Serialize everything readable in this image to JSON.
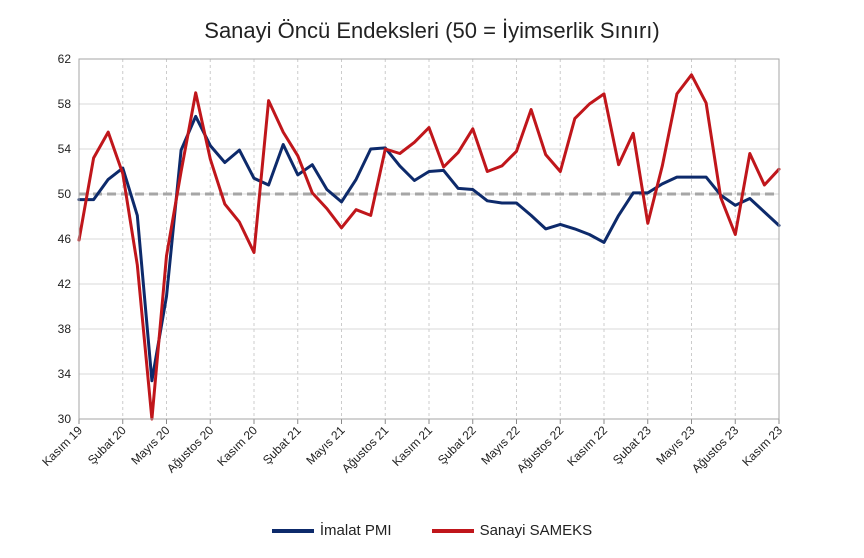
{
  "chart_data": {
    "type": "line",
    "title": "Sanayi Öncü Endeksleri (50 = İyimserlik Sınırı)",
    "xlabel": "",
    "ylabel": "",
    "ylim": [
      30,
      62
    ],
    "yticks": [
      30,
      34,
      38,
      42,
      46,
      50,
      54,
      58,
      62
    ],
    "reference_line": 50,
    "grid": true,
    "legend_position": "bottom",
    "categories": [
      "Kasım 19",
      "Aralık 19",
      "Ocak 20",
      "Şubat 20",
      "Mart 20",
      "Nisan 20",
      "Mayıs 20",
      "Haziran 20",
      "Temmuz 20",
      "Ağustos 20",
      "Eylül 20",
      "Ekim 20",
      "Kasım 20",
      "Aralık 20",
      "Ocak 21",
      "Şubat 21",
      "Mart 21",
      "Nisan 21",
      "Mayıs 21",
      "Haziran 21",
      "Temmuz 21",
      "Ağustos 21",
      "Eylül 21",
      "Ekim 21",
      "Kasım 21",
      "Aralık 21",
      "Ocak 22",
      "Şubat 22",
      "Mart 22",
      "Nisan 22",
      "Mayıs 22",
      "Haziran 22",
      "Temmuz 22",
      "Ağustos 22",
      "Eylül 22",
      "Ekim 22",
      "Kasım 22",
      "Aralık 22",
      "Ocak 23",
      "Şubat 23",
      "Mart 23",
      "Nisan 23",
      "Mayıs 23",
      "Haziran 23",
      "Temmuz 23",
      "Ağustos 23",
      "Eylül 23",
      "Ekim 23",
      "Kasım 23"
    ],
    "tick_labels": [
      "Kasım 19",
      "Şubat 20",
      "Mayıs 20",
      "Ağustos 20",
      "Kasım 20",
      "Şubat 21",
      "Mayıs 21",
      "Ağustos 21",
      "Kasım 21",
      "Şubat 22",
      "Mayıs 22",
      "Ağustos 22",
      "Kasım 22",
      "Şubat 23",
      "Mayıs 23",
      "Ağustos 23",
      "Kasım 23"
    ],
    "series": [
      {
        "name": "İmalat PMI",
        "color": "#0d2a6b",
        "values": [
          49.5,
          49.5,
          51.3,
          52.3,
          48.1,
          33.4,
          40.9,
          53.9,
          56.9,
          54.3,
          52.8,
          53.9,
          51.4,
          50.8,
          54.4,
          51.7,
          52.6,
          50.4,
          49.3,
          51.3,
          54.0,
          54.1,
          52.5,
          51.2,
          52.0,
          52.1,
          50.5,
          50.4,
          49.4,
          49.2,
          49.2,
          48.1,
          46.9,
          47.3,
          46.9,
          46.4,
          45.7,
          48.1,
          50.1,
          50.1,
          50.9,
          51.5,
          51.5,
          51.5,
          49.9,
          49.0,
          49.6,
          48.4,
          47.2
        ]
      },
      {
        "name": "Sanayi SAMEKS",
        "color": "#c0161b",
        "values": [
          45.9,
          53.2,
          55.5,
          51.8,
          43.7,
          30.0,
          44.5,
          52.0,
          59.0,
          53.1,
          49.1,
          47.5,
          44.8,
          58.3,
          55.5,
          53.4,
          50.1,
          48.7,
          47.0,
          48.6,
          48.1,
          54.0,
          53.6,
          54.6,
          55.9,
          52.4,
          53.7,
          55.8,
          52.0,
          52.5,
          53.8,
          57.5,
          53.5,
          52.0,
          56.7,
          58.0,
          58.9,
          52.6,
          55.4,
          47.4,
          52.5,
          58.9,
          60.6,
          58.1,
          49.7,
          46.4,
          53.6,
          50.8,
          52.2
        ]
      }
    ]
  }
}
